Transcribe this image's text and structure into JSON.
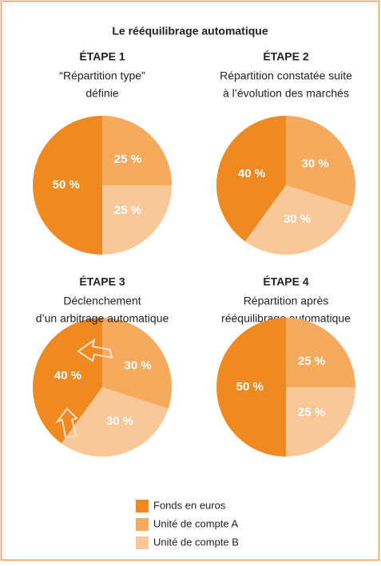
{
  "title": "Le rééquilibrage automatique",
  "legend": [
    {
      "name": "Fonds en euros",
      "color": "#ef8a22"
    },
    {
      "name": "Unité de compte A",
      "color": "#f5aa5e"
    },
    {
      "name": "Unité de compte B",
      "color": "#f9c899"
    }
  ],
  "chart_data": [
    {
      "type": "pie",
      "title": "ÉTAPE 1",
      "subtitle": [
        "“Répartition type”",
        "définie"
      ],
      "values": [
        50,
        25,
        25
      ],
      "value_labels": [
        "50 %",
        "25 %",
        "25 %"
      ]
    },
    {
      "type": "pie",
      "title": "ÉTAPE 2",
      "subtitle": [
        "Répartition constatée suite",
        "à l’évolution des marchés"
      ],
      "values": [
        40,
        30,
        30
      ],
      "value_labels": [
        "40 %",
        "30 %",
        "30 %"
      ]
    },
    {
      "type": "pie",
      "title": "ÉTAPE 3",
      "subtitle": [
        "Déclenchement",
        "d’un arbitrage automatique"
      ],
      "values": [
        40,
        30,
        30
      ],
      "value_labels": [
        "40 %",
        "30 %",
        "30 %"
      ]
    },
    {
      "type": "pie",
      "title": "ÉTAPE 4",
      "subtitle": [
        "Répartition après",
        "rééquilibrage automatique"
      ],
      "values": [
        50,
        25,
        25
      ],
      "value_labels": [
        "50 %",
        "25 %",
        "25 %"
      ]
    }
  ]
}
